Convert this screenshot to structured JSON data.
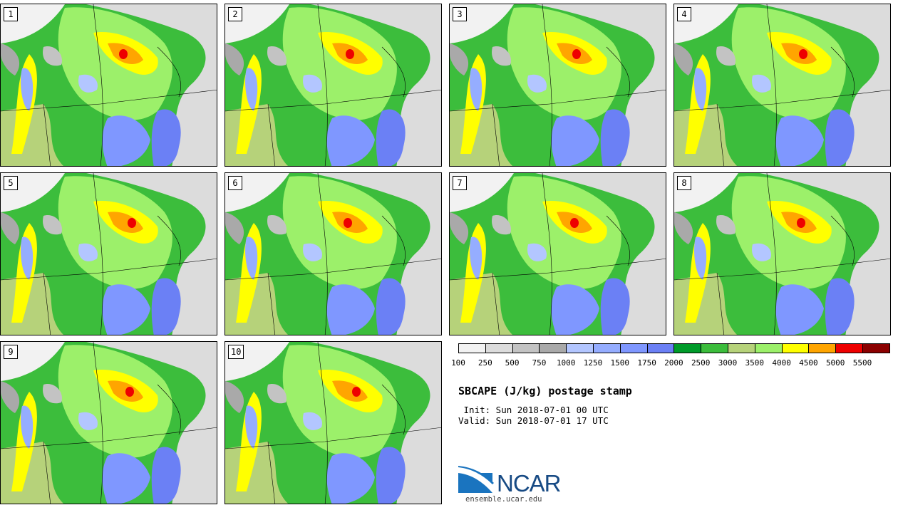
{
  "panels": [
    {
      "label": "1"
    },
    {
      "label": "2"
    },
    {
      "label": "3"
    },
    {
      "label": "4"
    },
    {
      "label": "5"
    },
    {
      "label": "6"
    },
    {
      "label": "7"
    },
    {
      "label": "8"
    },
    {
      "label": "9"
    },
    {
      "label": "10"
    }
  ],
  "legend": {
    "colors": [
      "#f2f2f2",
      "#dcdcdc",
      "#c3c3c3",
      "#a9a9a9",
      "#b3c6ff",
      "#95adff",
      "#7f97ff",
      "#6b80f5",
      "#009b2a",
      "#3cbd3c",
      "#b6d27a",
      "#9cf06a",
      "#ffff00",
      "#ffa500",
      "#ee0000",
      "#8b0000"
    ],
    "tick_labels": [
      "100",
      "250",
      "500",
      "750",
      "1000",
      "1250",
      "1500",
      "1750",
      "2000",
      "2500",
      "3000",
      "3500",
      "4000",
      "4500",
      "5000",
      "5500"
    ]
  },
  "title": "SBCAPE (J/kg) postage stamp",
  "init": " Init: Sun 2018-07-01 00 UTC",
  "valid": "Valid: Sun 2018-07-01 17 UTC",
  "logo_text": "NCAR",
  "url": "ensemble.ucar.edu"
}
